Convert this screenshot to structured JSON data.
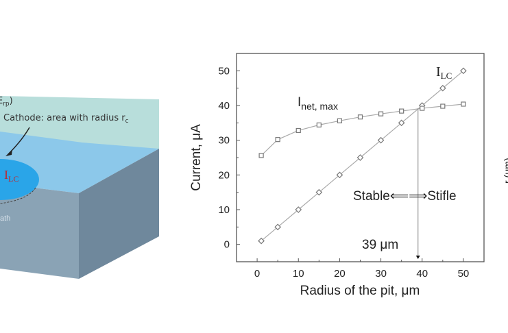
{
  "diagram": {
    "label_top": "E",
    "label_top_sub": "rp",
    "label_top_close": ")",
    "cathode_label": "Cathode: area with radius r",
    "cathode_label_sub": "c",
    "ilc_label": "I",
    "ilc_label_sub": "LC",
    "bath_label": "ath",
    "colors": {
      "top_sheet": "#b8dedb",
      "top_face": "#8cc8ea",
      "cathode": "#2aa5e8",
      "front": "#8aa3b5",
      "side": "#6f889c",
      "ilc_text": "#c0262b"
    }
  },
  "right_partial": {
    "ylabel": "r   (μm)"
  },
  "chart_data": {
    "type": "line",
    "xlabel": "Radius of the pit, μm",
    "ylabel": "Current, μA",
    "xlim": [
      -5,
      55
    ],
    "ylim": [
      -5,
      55
    ],
    "xticks": [
      0,
      10,
      20,
      30,
      40,
      50
    ],
    "yticks": [
      0,
      10,
      20,
      30,
      40,
      50
    ],
    "grid": false,
    "x": [
      1,
      5,
      10,
      15,
      20,
      25,
      30,
      35,
      40,
      45,
      50
    ],
    "series": [
      {
        "name": "I_LC",
        "label": "I",
        "label_sub": "LC",
        "marker": "diamond",
        "values": [
          1,
          5,
          10,
          15,
          20,
          25,
          30,
          35,
          40,
          45,
          50
        ]
      },
      {
        "name": "I_net,max",
        "label": "I",
        "label_sub": "net, max",
        "marker": "square",
        "values": [
          25.6,
          30.2,
          32.8,
          34.4,
          35.6,
          36.7,
          37.6,
          38.4,
          39.2,
          39.8,
          40.4
        ]
      }
    ],
    "annotations": {
      "crossover_x": 39,
      "crossover_label": "39 μm",
      "regime_left": "Stable",
      "regime_arrow": "⟸⟹",
      "regime_right": "Stifle"
    }
  }
}
